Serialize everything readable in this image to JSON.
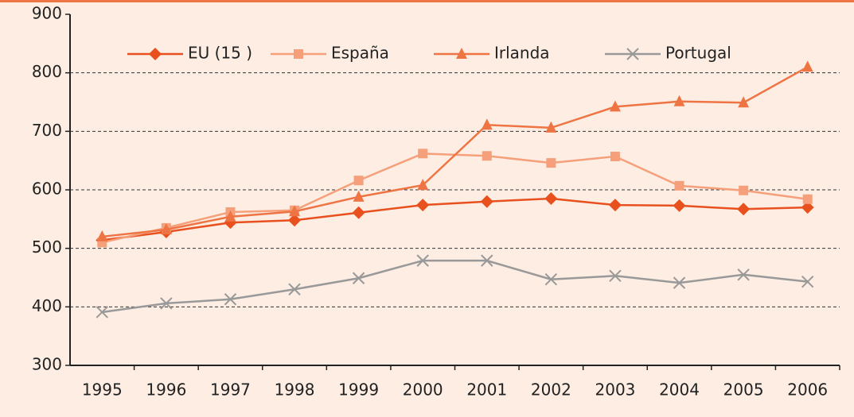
{
  "chart_data": {
    "type": "line",
    "categories": [
      "1995",
      "1996",
      "1997",
      "1998",
      "1999",
      "2000",
      "2001",
      "2002",
      "2003",
      "2004",
      "2005",
      "2006"
    ],
    "series": [
      {
        "name": "EU (15 )",
        "color": "#e8501e",
        "marker": "diamond",
        "values": [
          514,
          528,
          544,
          548,
          561,
          574,
          580,
          585,
          574,
          573,
          567,
          570
        ]
      },
      {
        "name": "España",
        "color": "#f5a07a",
        "marker": "square",
        "values": [
          510,
          535,
          562,
          565,
          616,
          662,
          658,
          646,
          657,
          607,
          599,
          584
        ]
      },
      {
        "name": "Irlanda",
        "color": "#ee7444",
        "marker": "triangle",
        "values": [
          520,
          532,
          554,
          563,
          588,
          608,
          711,
          706,
          742,
          751,
          749,
          810
        ]
      },
      {
        "name": "Portugal",
        "color": "#999999",
        "marker": "x",
        "values": [
          391,
          406,
          413,
          430,
          449,
          479,
          479,
          447,
          453,
          441,
          455,
          443
        ]
      }
    ],
    "ylim": [
      300,
      900
    ],
    "yticks": [
      300,
      400,
      500,
      600,
      700,
      800,
      900
    ],
    "grid": true
  }
}
